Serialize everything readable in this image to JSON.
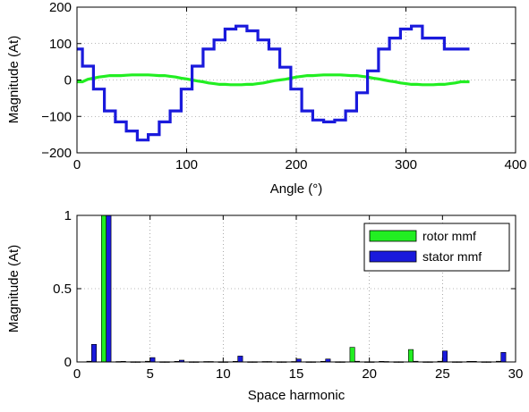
{
  "chart_data": [
    {
      "type": "line",
      "xlabel": "Angle (°)",
      "ylabel": "Magnitude (At)",
      "xlim": [
        0,
        400
      ],
      "ylim": [
        -200,
        200
      ],
      "xticks": [
        0,
        100,
        200,
        300,
        400
      ],
      "yticks": [
        -200,
        -100,
        0,
        100,
        200
      ],
      "xtick_labels": [
        "0",
        "100",
        "200",
        "300",
        "400"
      ],
      "ytick_labels": [
        "−200",
        "−100",
        "0",
        "100",
        "200"
      ],
      "grid": true,
      "series": [
        {
          "name": "rotor mmf",
          "color": "#22ee22",
          "x": [
            0,
            5,
            10,
            15,
            20,
            25,
            30,
            35,
            40,
            45,
            50,
            55,
            60,
            65,
            70,
            75,
            80,
            85,
            90,
            95,
            100,
            105,
            110,
            115,
            120,
            125,
            130,
            135,
            140,
            145,
            150,
            155,
            160,
            165,
            170,
            175,
            180,
            185,
            190,
            195,
            200,
            205,
            210,
            215,
            220,
            225,
            230,
            235,
            240,
            245,
            250,
            255,
            260,
            265,
            270,
            275,
            280,
            285,
            290,
            295,
            300,
            305,
            310,
            315,
            320,
            325,
            330,
            335,
            340,
            345,
            350,
            355,
            358
          ],
          "y": [
            -5,
            -5,
            2,
            5,
            8,
            10,
            12,
            12,
            12,
            13,
            14,
            14,
            14,
            14,
            13,
            12,
            12,
            10,
            8,
            5,
            3,
            0,
            -3,
            -5,
            -8,
            -10,
            -12,
            -12,
            -13,
            -13,
            -13,
            -12,
            -12,
            -10,
            -8,
            -5,
            -2,
            0,
            2,
            5,
            8,
            10,
            12,
            12,
            13,
            14,
            14,
            14,
            14,
            13,
            12,
            12,
            10,
            8,
            5,
            3,
            0,
            -3,
            -5,
            -8,
            -10,
            -12,
            -12,
            -13,
            -13,
            -13,
            -12,
            -12,
            -10,
            -8,
            -5,
            -5,
            -5
          ]
        },
        {
          "name": "stator mmf",
          "color": "#1a1adc",
          "x": [
            0,
            5,
            5,
            15,
            15,
            25,
            25,
            35,
            35,
            45,
            45,
            55,
            55,
            65,
            65,
            75,
            75,
            85,
            85,
            95,
            95,
            105,
            105,
            115,
            115,
            125,
            125,
            135,
            135,
            145,
            145,
            155,
            155,
            165,
            165,
            175,
            175,
            185,
            185,
            195,
            195,
            205,
            205,
            215,
            215,
            225,
            225,
            235,
            235,
            245,
            245,
            255,
            255,
            265,
            265,
            275,
            275,
            285,
            285,
            295,
            295,
            305,
            305,
            315,
            315,
            325,
            325,
            335,
            335,
            345,
            345,
            355,
            355,
            358
          ],
          "y": [
            85,
            85,
            38,
            38,
            -25,
            -25,
            -85,
            -85,
            -115,
            -115,
            -140,
            -140,
            -165,
            -165,
            -150,
            -150,
            -115,
            -115,
            -85,
            -85,
            -25,
            -25,
            38,
            38,
            85,
            85,
            110,
            110,
            140,
            140,
            148,
            148,
            135,
            135,
            110,
            110,
            85,
            85,
            35,
            35,
            -25,
            -25,
            -85,
            -85,
            -110,
            -110,
            -115,
            -115,
            -110,
            -110,
            -85,
            -85,
            -35,
            -35,
            25,
            25,
            85,
            85,
            115,
            115,
            140,
            140,
            148,
            148,
            115,
            115,
            115,
            115,
            85,
            85,
            85,
            85,
            85,
            85
          ]
        }
      ]
    },
    {
      "type": "bar",
      "xlabel": "Space harmonic",
      "ylabel": "Magnitude (At)",
      "xlim": [
        0,
        30
      ],
      "ylim": [
        0,
        1
      ],
      "xticks": [
        0,
        5,
        10,
        15,
        20,
        25,
        30
      ],
      "yticks": [
        0,
        0.5,
        1
      ],
      "xtick_labels": [
        "0",
        "5",
        "10",
        "15",
        "20",
        "25",
        "30"
      ],
      "ytick_labels": [
        "0",
        "0.5",
        "1"
      ],
      "grid": true,
      "legend_position": "top-right",
      "categories": [
        1,
        2,
        3,
        4,
        5,
        6,
        7,
        8,
        9,
        10,
        11,
        12,
        13,
        14,
        15,
        16,
        17,
        18,
        19,
        20,
        21,
        22,
        23,
        24,
        25,
        26,
        27,
        28,
        29
      ],
      "series": [
        {
          "name": "rotor mmf",
          "color": "#22ee22",
          "values": [
            0.005,
            1.0,
            0.003,
            0.002,
            0.005,
            0.002,
            0.004,
            0.002,
            0.003,
            0.002,
            0.004,
            0.002,
            0.003,
            0.002,
            0.003,
            0.002,
            0.004,
            0.002,
            0.1,
            0.002,
            0.004,
            0.002,
            0.085,
            0.002,
            0.005,
            0.002,
            0.004,
            0.002,
            0.005
          ]
        },
        {
          "name": "stator mmf",
          "color": "#1a1adc",
          "values": [
            0.12,
            1.0,
            0.004,
            0.002,
            0.03,
            0.002,
            0.012,
            0.002,
            0.003,
            0.002,
            0.04,
            0.002,
            0.003,
            0.002,
            0.02,
            0.002,
            0.02,
            0.002,
            0.005,
            0.002,
            0.003,
            0.002,
            0.005,
            0.002,
            0.075,
            0.002,
            0.004,
            0.002,
            0.065
          ]
        }
      ],
      "legend": [
        "rotor mmf",
        "stator mmf"
      ]
    }
  ]
}
